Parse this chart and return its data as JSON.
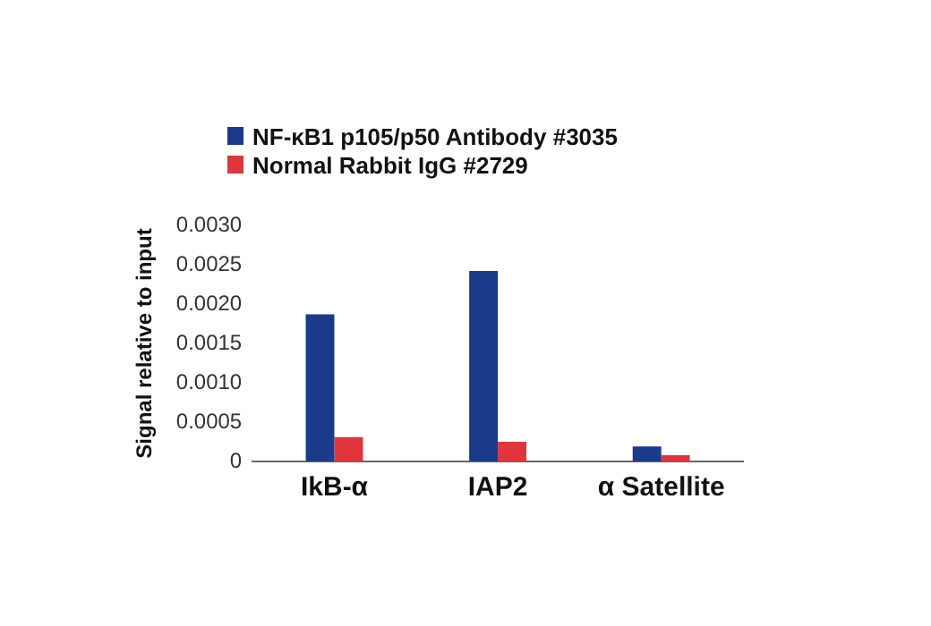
{
  "chart_data": {
    "type": "bar",
    "ylabel": "Signal relative to input",
    "categories": [
      "IkB-α",
      "IAP2",
      "α Satellite"
    ],
    "series": [
      {
        "name": "NF-κB1 p105/p50 Antibody #3035",
        "color": "#1a3a8a",
        "values": [
          0.00187,
          0.00242,
          0.00019
        ]
      },
      {
        "name": "Normal Rabbit IgG #2729",
        "color": "#e0353b",
        "values": [
          0.00031,
          0.00025,
          8e-05
        ]
      }
    ],
    "ylim": [
      0,
      0.003
    ],
    "yticks": [
      0,
      0.0005,
      {
        "value": 0.001,
        "label": "0.0010"
      },
      0.0015,
      {
        "value": 0.002,
        "label": "0.0020"
      },
      0.0025,
      {
        "value": 0.003,
        "label": "0.0030"
      }
    ],
    "grid": false,
    "legend": "top left"
  }
}
